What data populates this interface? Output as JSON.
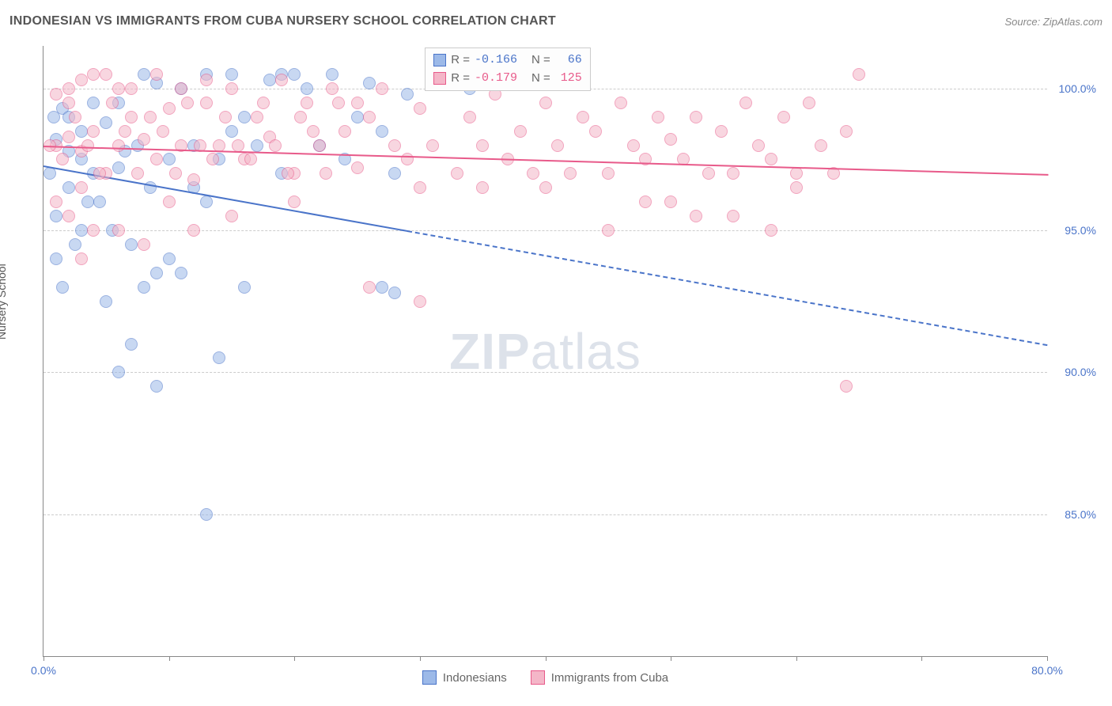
{
  "title": "INDONESIAN VS IMMIGRANTS FROM CUBA NURSERY SCHOOL CORRELATION CHART",
  "source": "Source: ZipAtlas.com",
  "watermark_bold": "ZIP",
  "watermark_light": "atlas",
  "ylabel": "Nursery School",
  "chart": {
    "type": "scatter",
    "xlim": [
      0,
      80
    ],
    "ylim": [
      80,
      101.5
    ],
    "yticks": [
      85,
      90,
      95,
      100
    ],
    "ytick_labels": [
      "85.0%",
      "90.0%",
      "95.0%",
      "100.0%"
    ],
    "xticks": [
      0,
      10,
      20,
      30,
      40,
      50,
      60,
      70,
      80
    ],
    "x_start_label": "0.0%",
    "x_end_label": "80.0%",
    "grid_color": "#cccccc",
    "background_color": "#ffffff",
    "point_radius": 8,
    "point_opacity": 0.55,
    "series": [
      {
        "name": "Indonesians",
        "label": "Indonesians",
        "color_fill": "#9cb9e8",
        "color_stroke": "#4a74c9",
        "regression": {
          "x0": 0,
          "y0": 97.3,
          "x1": 80,
          "y1": 91.0,
          "solid_until_x": 29
        },
        "stats": {
          "R": "-0.166",
          "N": "66"
        },
        "points": [
          [
            1,
            98.2
          ],
          [
            2,
            97.8
          ],
          [
            1.5,
            99.3
          ],
          [
            3,
            98.5
          ],
          [
            2,
            96.5
          ],
          [
            4,
            97.0
          ],
          [
            3,
            95.0
          ],
          [
            1,
            94.0
          ],
          [
            5,
            98.8
          ],
          [
            6,
            97.2
          ],
          [
            4.5,
            96.0
          ],
          [
            6,
            99.5
          ],
          [
            7,
            94.5
          ],
          [
            8,
            100.5
          ],
          [
            7.5,
            98.0
          ],
          [
            9,
            100.2
          ],
          [
            10,
            97.5
          ],
          [
            9,
            93.5
          ],
          [
            11,
            100.0
          ],
          [
            12,
            98.0
          ],
          [
            5,
            92.5
          ],
          [
            8,
            93.0
          ],
          [
            10,
            94.0
          ],
          [
            13,
            100.5
          ],
          [
            14,
            97.5
          ],
          [
            15,
            98.5
          ],
          [
            12,
            96.5
          ],
          [
            16,
            99.0
          ],
          [
            17,
            98.0
          ],
          [
            18,
            100.3
          ],
          [
            19,
            97.0
          ],
          [
            20,
            100.5
          ],
          [
            6,
            90.0
          ],
          [
            7,
            91.0
          ],
          [
            11,
            93.5
          ],
          [
            13,
            96.0
          ],
          [
            21,
            100.0
          ],
          [
            22,
            98.0
          ],
          [
            23,
            100.5
          ],
          [
            24,
            97.5
          ],
          [
            25,
            99.0
          ],
          [
            26,
            100.2
          ],
          [
            27,
            98.5
          ],
          [
            28,
            97.0
          ],
          [
            29,
            99.8
          ],
          [
            14,
            90.5
          ],
          [
            16,
            93.0
          ],
          [
            9,
            89.5
          ],
          [
            27,
            93.0
          ],
          [
            28,
            92.8
          ],
          [
            13,
            85.0
          ],
          [
            1,
            95.5
          ],
          [
            2,
            99.0
          ],
          [
            3,
            97.5
          ],
          [
            4,
            99.5
          ],
          [
            0.5,
            97.0
          ],
          [
            34,
            100.0
          ],
          [
            1.5,
            93.0
          ],
          [
            2.5,
            94.5
          ],
          [
            3.5,
            96.0
          ],
          [
            0.8,
            99.0
          ],
          [
            5.5,
            95.0
          ],
          [
            6.5,
            97.8
          ],
          [
            8.5,
            96.5
          ],
          [
            15,
            100.5
          ],
          [
            19,
            100.5
          ]
        ]
      },
      {
        "name": "Immigrants from Cuba",
        "label": "Immigrants from Cuba",
        "color_fill": "#f4b6c8",
        "color_stroke": "#e85a8a",
        "regression": {
          "x0": 0,
          "y0": 98.0,
          "x1": 80,
          "y1": 97.0,
          "solid_until_x": 80
        },
        "stats": {
          "R": "-0.179",
          "N": "125"
        },
        "points": [
          [
            1,
            98.0
          ],
          [
            2,
            98.3
          ],
          [
            3,
            97.8
          ],
          [
            4,
            98.5
          ],
          [
            2,
            99.5
          ],
          [
            5,
            97.0
          ],
          [
            6,
            98.0
          ],
          [
            3,
            96.5
          ],
          [
            7,
            99.0
          ],
          [
            8,
            98.2
          ],
          [
            9,
            97.5
          ],
          [
            10,
            99.3
          ],
          [
            11,
            98.0
          ],
          [
            12,
            96.8
          ],
          [
            13,
            99.5
          ],
          [
            14,
            98.0
          ],
          [
            15,
            100.0
          ],
          [
            16,
            97.5
          ],
          [
            17,
            99.0
          ],
          [
            18,
            98.3
          ],
          [
            19,
            100.3
          ],
          [
            20,
            97.0
          ],
          [
            21,
            99.5
          ],
          [
            22,
            98.0
          ],
          [
            23,
            100.0
          ],
          [
            24,
            98.5
          ],
          [
            25,
            97.2
          ],
          [
            26,
            99.0
          ],
          [
            27,
            100.0
          ],
          [
            28,
            98.0
          ],
          [
            29,
            97.5
          ],
          [
            30,
            99.3
          ],
          [
            31,
            98.0
          ],
          [
            32,
            100.2
          ],
          [
            33,
            97.0
          ],
          [
            34,
            99.0
          ],
          [
            35,
            98.0
          ],
          [
            36,
            99.8
          ],
          [
            37,
            97.5
          ],
          [
            38,
            98.5
          ],
          [
            39,
            97.0
          ],
          [
            40,
            99.5
          ],
          [
            41,
            98.0
          ],
          [
            42,
            97.0
          ],
          [
            43,
            99.0
          ],
          [
            44,
            98.5
          ],
          [
            45,
            97.0
          ],
          [
            46,
            99.5
          ],
          [
            47,
            98.0
          ],
          [
            48,
            97.5
          ],
          [
            49,
            99.0
          ],
          [
            50,
            98.2
          ],
          [
            51,
            97.5
          ],
          [
            52,
            99.0
          ],
          [
            53,
            97.0
          ],
          [
            54,
            98.5
          ],
          [
            55,
            97.0
          ],
          [
            56,
            99.5
          ],
          [
            57,
            98.0
          ],
          [
            58,
            97.5
          ],
          [
            59,
            99.0
          ],
          [
            60,
            97.0
          ],
          [
            61,
            99.5
          ],
          [
            62,
            98.0
          ],
          [
            63,
            97.0
          ],
          [
            64,
            98.5
          ],
          [
            65,
            100.5
          ],
          [
            10,
            96.0
          ],
          [
            15,
            95.5
          ],
          [
            20,
            96.0
          ],
          [
            25,
            99.5
          ],
          [
            30,
            96.5
          ],
          [
            35,
            96.5
          ],
          [
            40,
            96.5
          ],
          [
            45,
            95.0
          ],
          [
            64,
            89.5
          ],
          [
            30,
            92.5
          ],
          [
            26,
            93.0
          ],
          [
            4,
            95.0
          ],
          [
            8,
            94.5
          ],
          [
            12,
            95.0
          ],
          [
            2,
            95.5
          ],
          [
            6,
            95.0
          ],
          [
            3,
            94.0
          ],
          [
            1,
            96.0
          ],
          [
            0.5,
            98.0
          ],
          [
            1.5,
            97.5
          ],
          [
            2.5,
            99.0
          ],
          [
            3.5,
            98.0
          ],
          [
            4.5,
            97.0
          ],
          [
            5.5,
            99.5
          ],
          [
            6.5,
            98.5
          ],
          [
            7.5,
            97.0
          ],
          [
            8.5,
            99.0
          ],
          [
            9.5,
            98.5
          ],
          [
            10.5,
            97.0
          ],
          [
            11.5,
            99.5
          ],
          [
            12.5,
            98.0
          ],
          [
            13.5,
            97.5
          ],
          [
            14.5,
            99.0
          ],
          [
            15.5,
            98.0
          ],
          [
            16.5,
            97.5
          ],
          [
            17.5,
            99.5
          ],
          [
            18.5,
            98.0
          ],
          [
            19.5,
            97.0
          ],
          [
            20.5,
            99.0
          ],
          [
            21.5,
            98.5
          ],
          [
            22.5,
            97.0
          ],
          [
            23.5,
            99.5
          ],
          [
            5,
            100.5
          ],
          [
            7,
            100.0
          ],
          [
            55,
            95.5
          ],
          [
            50,
            96.0
          ],
          [
            60,
            96.5
          ],
          [
            58,
            95.0
          ],
          [
            48,
            96.0
          ],
          [
            52,
            95.5
          ],
          [
            1,
            99.8
          ],
          [
            2,
            100.0
          ],
          [
            3,
            100.3
          ],
          [
            4,
            100.5
          ],
          [
            6,
            100.0
          ],
          [
            9,
            100.5
          ],
          [
            11,
            100.0
          ],
          [
            13,
            100.3
          ],
          [
            42,
            100.2
          ]
        ]
      }
    ]
  }
}
